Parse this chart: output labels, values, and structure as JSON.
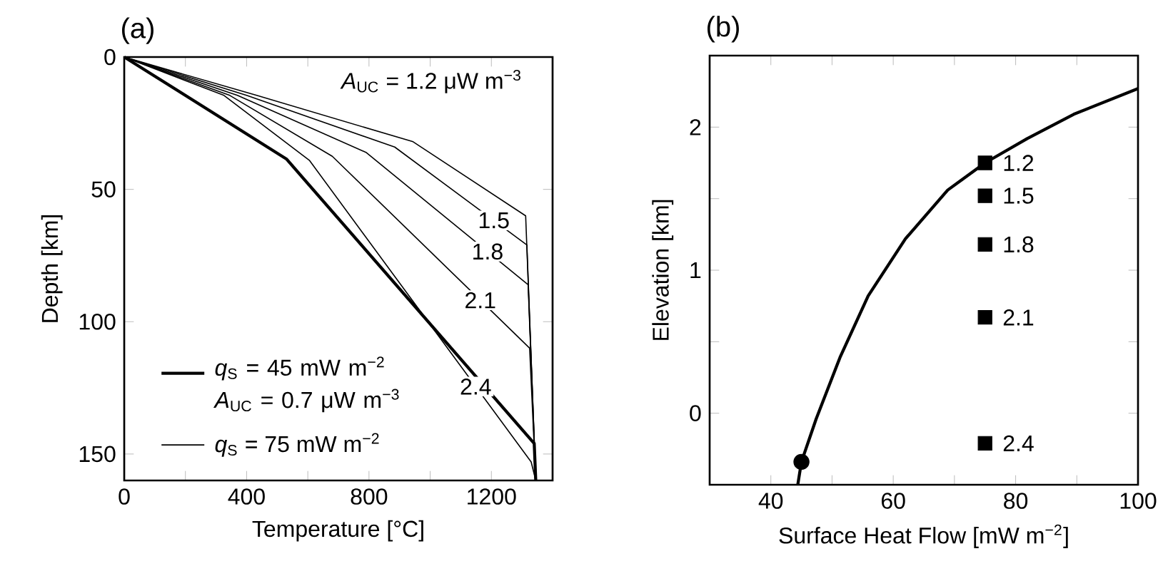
{
  "chart_data": [
    {
      "type": "line",
      "title": "(a)",
      "xlabel": "Temperature [°C]",
      "ylabel": "Depth [km]",
      "xlim": [
        0,
        1400
      ],
      "ylim": [
        160,
        0
      ],
      "xticks": [
        0,
        {
          "value": 200,
          "label": null
        },
        400,
        {
          "value": 600,
          "label": null
        },
        800,
        {
          "value": 1000,
          "label": null
        },
        1200
      ],
      "yticks": [
        0,
        50,
        100,
        150
      ],
      "legend": "bottom left",
      "series": [
        {
          "name": "*q*$_{S}$ = 45 mW m$^{−2}$ *A*$_{UC}$ = 0.7 μW m$^{−3}$",
          "color": "#000000",
          "x": [
            0,
            530,
            1340,
            1345
          ],
          "values": [
            0,
            38.5,
            146,
            160
          ]
        },
        {
          "name": "*q*$_{S}$ = 75 mW m$^{−2}$",
          "color": "#000000",
          "x": [
            0,
            433,
            944,
            1312,
            1345
          ],
          "values": [
            0,
            14.5,
            32,
            60,
            160
          ]
        },
        {
          "color": "#000000",
          "x": [
            0,
            400,
            884,
            1316,
            1345
          ],
          "values": [
            0,
            14.5,
            34,
            71,
            160
          ]
        },
        {
          "color": "#000000",
          "x": [
            0,
            370,
            790,
            1320,
            1345
          ],
          "values": [
            0,
            14.5,
            36,
            86,
            160
          ]
        },
        {
          "color": "#000000",
          "x": [
            0,
            345,
            680,
            1325,
            1345
          ],
          "values": [
            0,
            14.5,
            37.5,
            110,
            160
          ]
        },
        {
          "color": "#000000",
          "x": [
            0,
            326,
            605,
            1330,
            1345
          ],
          "values": [
            0,
            14.5,
            39,
            153,
            160
          ]
        }
      ],
      "annotations": [
        "*A*$_{UC}$ = 1.2 μW m$^{−3}$",
        "1.5",
        "1.8",
        "2.1",
        "2.4"
      ]
    },
    {
      "type": "line",
      "title": "(b)",
      "xlabel": "Surface Heat Flow [mW m$^{−2}$]",
      "ylabel": "Elevation [km]",
      "xlim": [
        30,
        100
      ],
      "ylim": [
        -0.5,
        2.5
      ],
      "xticks": [
        40,
        {
          "value": 50,
          "label": null
        },
        60,
        {
          "value": 70,
          "label": null
        },
        80,
        {
          "value": 90,
          "label": null
        },
        100
      ],
      "yticks": [
        0,
        {
          "value": 0.5,
          "label": null
        },
        1,
        {
          "value": 1.5,
          "label": null
        },
        2
      ],
      "series": [
        {
          "color": "#000000",
          "x": [
            44.4,
            45,
            47.4,
            51.3,
            55.9,
            62,
            68.9,
            75,
            81.9,
            89.5,
            100
          ],
          "values": [
            -0.5,
            -0.34,
            -0.04,
            0.39,
            0.82,
            1.22,
            1.56,
            1.75,
            1.92,
            2.09,
            2.27
          ]
        },
        {
          "type": "scatter",
          "marker": "square",
          "name": "1.2",
          "color": "#000000",
          "x": [
            75
          ],
          "values": [
            1.75
          ]
        },
        {
          "type": "scatter",
          "marker": "square",
          "name": "1.5",
          "color": "#000000",
          "x": [
            75
          ],
          "values": [
            1.52
          ]
        },
        {
          "type": "scatter",
          "marker": "square",
          "name": "1.8",
          "color": "#000000",
          "x": [
            75
          ],
          "values": [
            1.18
          ]
        },
        {
          "type": "scatter",
          "marker": "square",
          "name": "2.1",
          "color": "#000000",
          "x": [
            75
          ],
          "values": [
            0.67
          ]
        },
        {
          "type": "scatter",
          "marker": "square",
          "name": "2.4",
          "color": "#000000",
          "x": [
            75
          ],
          "values": [
            -0.21
          ]
        },
        {
          "type": "scatter",
          "marker": "circle",
          "color": "#000000",
          "x": [
            45
          ],
          "values": [
            -0.34
          ]
        }
      ]
    }
  ]
}
